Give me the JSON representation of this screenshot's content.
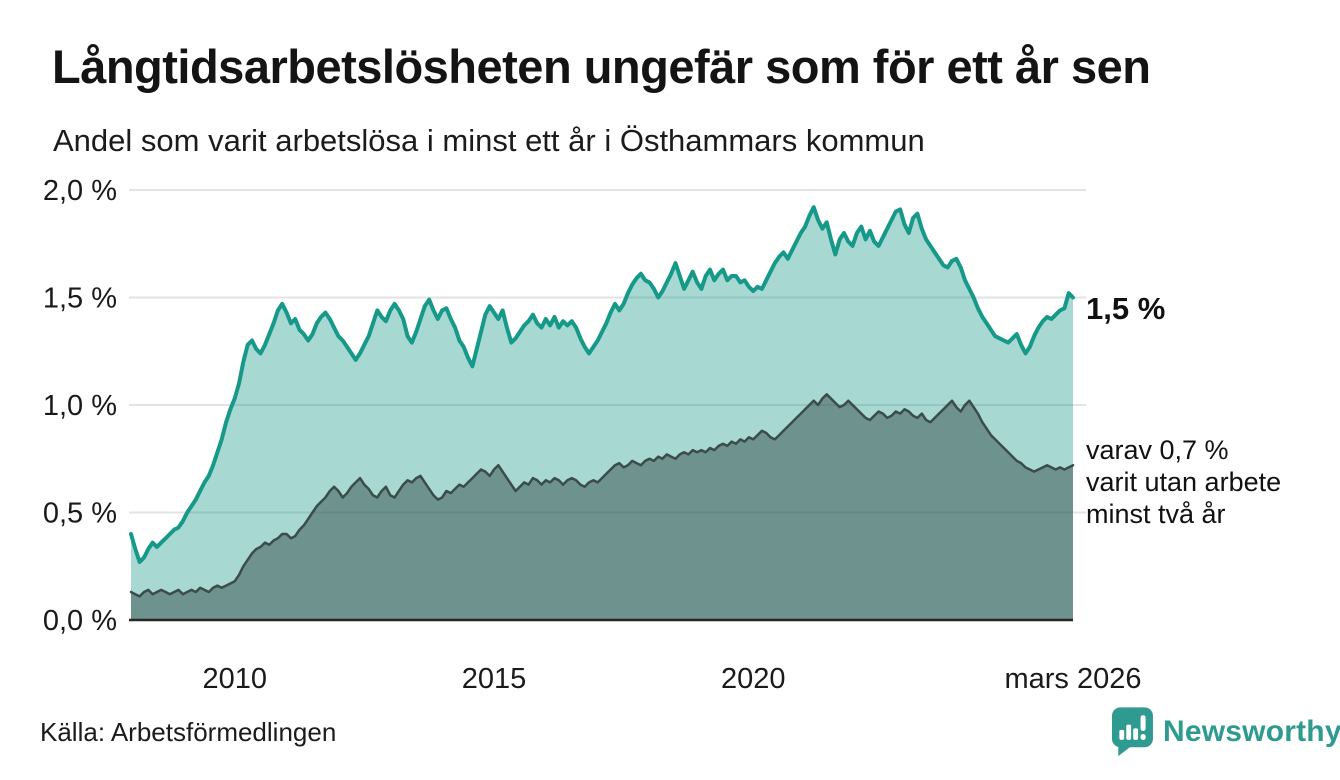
{
  "header": {
    "title": "Långtidsarbetslösheten ungefär som för ett år sen",
    "subtitle": "Andel som varit arbetslösa i minst ett år i Östhammars kommun"
  },
  "chart_data": {
    "type": "area",
    "title": "Långtidsarbetslösheten ungefär som för ett år sen",
    "subtitle": "Andel som varit arbetslösa i minst ett år i Östhammars kommun",
    "unit": "%",
    "frequency": "monthly",
    "x_start": "2008-01",
    "x_end": "2026-03",
    "ylim": [
      0,
      2.0
    ],
    "grid": true,
    "y_ticks": [
      {
        "label": "2,0 %",
        "value": 2.0
      },
      {
        "label": "1,5 %",
        "value": 1.5
      },
      {
        "label": "1,0 %",
        "value": 1.0
      },
      {
        "label": "0,5 %",
        "value": 0.5
      },
      {
        "label": "0,0 %",
        "value": 0.0
      }
    ],
    "x_ticks": [
      {
        "label": "2010",
        "year": 2010.0
      },
      {
        "label": "2015",
        "year": 2015.0
      },
      {
        "label": "2020",
        "year": 2020.0
      },
      {
        "label": "mars 2026",
        "year": 2026.1667
      }
    ],
    "series": [
      {
        "name": "Andel arbetslösa minst ett år",
        "line_color": "#17998a",
        "fill_color": "rgba(23,153,138,0.38)",
        "line_width": 4,
        "latest_value": "1,5 %",
        "values": [
          0.4,
          0.33,
          0.27,
          0.29,
          0.33,
          0.36,
          0.34,
          0.36,
          0.38,
          0.4,
          0.42,
          0.43,
          0.46,
          0.5,
          0.53,
          0.56,
          0.6,
          0.64,
          0.67,
          0.72,
          0.78,
          0.84,
          0.92,
          0.98,
          1.03,
          1.1,
          1.2,
          1.28,
          1.3,
          1.26,
          1.24,
          1.28,
          1.33,
          1.38,
          1.44,
          1.47,
          1.43,
          1.38,
          1.4,
          1.35,
          1.33,
          1.3,
          1.33,
          1.38,
          1.41,
          1.43,
          1.4,
          1.36,
          1.32,
          1.3,
          1.27,
          1.24,
          1.21,
          1.24,
          1.28,
          1.32,
          1.38,
          1.44,
          1.41,
          1.39,
          1.44,
          1.47,
          1.44,
          1.4,
          1.32,
          1.29,
          1.34,
          1.4,
          1.46,
          1.49,
          1.44,
          1.4,
          1.44,
          1.45,
          1.4,
          1.36,
          1.3,
          1.27,
          1.22,
          1.18,
          1.26,
          1.34,
          1.42,
          1.46,
          1.43,
          1.4,
          1.44,
          1.36,
          1.29,
          1.31,
          1.34,
          1.37,
          1.39,
          1.42,
          1.38,
          1.36,
          1.4,
          1.37,
          1.41,
          1.36,
          1.39,
          1.37,
          1.39,
          1.36,
          1.31,
          1.27,
          1.24,
          1.27,
          1.3,
          1.34,
          1.38,
          1.43,
          1.47,
          1.44,
          1.47,
          1.52,
          1.56,
          1.59,
          1.61,
          1.58,
          1.57,
          1.54,
          1.5,
          1.53,
          1.57,
          1.61,
          1.66,
          1.6,
          1.54,
          1.58,
          1.62,
          1.57,
          1.54,
          1.6,
          1.63,
          1.58,
          1.61,
          1.63,
          1.58,
          1.6,
          1.6,
          1.57,
          1.58,
          1.55,
          1.53,
          1.55,
          1.54,
          1.58,
          1.62,
          1.66,
          1.69,
          1.71,
          1.68,
          1.72,
          1.76,
          1.8,
          1.83,
          1.88,
          1.92,
          1.86,
          1.82,
          1.85,
          1.77,
          1.7,
          1.77,
          1.8,
          1.76,
          1.74,
          1.8,
          1.83,
          1.77,
          1.81,
          1.76,
          1.74,
          1.78,
          1.82,
          1.86,
          1.9,
          1.91,
          1.84,
          1.8,
          1.87,
          1.89,
          1.82,
          1.77,
          1.74,
          1.71,
          1.68,
          1.65,
          1.64,
          1.67,
          1.68,
          1.64,
          1.58,
          1.54,
          1.5,
          1.45,
          1.41,
          1.38,
          1.35,
          1.32,
          1.31,
          1.3,
          1.29,
          1.31,
          1.33,
          1.28,
          1.24,
          1.27,
          1.32,
          1.36,
          1.39,
          1.41,
          1.4,
          1.42,
          1.44,
          1.45,
          1.52,
          1.5
        ]
      },
      {
        "name": "Varav utan arbete minst två år",
        "line_color": "#3b4d4b",
        "fill_color": "rgba(43,61,59,0.45)",
        "line_width": 2.5,
        "latest_value": "0,7 %",
        "values": [
          0.13,
          0.12,
          0.11,
          0.13,
          0.14,
          0.12,
          0.13,
          0.14,
          0.13,
          0.12,
          0.13,
          0.14,
          0.12,
          0.13,
          0.14,
          0.13,
          0.15,
          0.14,
          0.13,
          0.15,
          0.16,
          0.15,
          0.16,
          0.17,
          0.18,
          0.21,
          0.25,
          0.28,
          0.31,
          0.33,
          0.34,
          0.36,
          0.35,
          0.37,
          0.38,
          0.4,
          0.4,
          0.38,
          0.39,
          0.42,
          0.44,
          0.47,
          0.5,
          0.53,
          0.55,
          0.57,
          0.6,
          0.62,
          0.6,
          0.57,
          0.59,
          0.62,
          0.64,
          0.66,
          0.63,
          0.61,
          0.58,
          0.57,
          0.6,
          0.62,
          0.58,
          0.57,
          0.6,
          0.63,
          0.65,
          0.64,
          0.66,
          0.67,
          0.64,
          0.61,
          0.58,
          0.56,
          0.57,
          0.6,
          0.59,
          0.61,
          0.63,
          0.62,
          0.64,
          0.66,
          0.68,
          0.7,
          0.69,
          0.67,
          0.7,
          0.72,
          0.69,
          0.66,
          0.63,
          0.6,
          0.62,
          0.64,
          0.63,
          0.66,
          0.65,
          0.63,
          0.65,
          0.64,
          0.66,
          0.65,
          0.63,
          0.65,
          0.66,
          0.65,
          0.63,
          0.62,
          0.64,
          0.65,
          0.64,
          0.66,
          0.68,
          0.7,
          0.72,
          0.73,
          0.71,
          0.72,
          0.74,
          0.73,
          0.72,
          0.74,
          0.75,
          0.74,
          0.76,
          0.75,
          0.77,
          0.76,
          0.75,
          0.77,
          0.78,
          0.77,
          0.79,
          0.78,
          0.79,
          0.78,
          0.8,
          0.79,
          0.81,
          0.82,
          0.81,
          0.83,
          0.82,
          0.84,
          0.83,
          0.85,
          0.84,
          0.86,
          0.88,
          0.87,
          0.85,
          0.84,
          0.86,
          0.88,
          0.9,
          0.92,
          0.94,
          0.96,
          0.98,
          1.0,
          1.02,
          1.0,
          1.03,
          1.05,
          1.03,
          1.01,
          0.99,
          1.0,
          1.02,
          1.0,
          0.98,
          0.96,
          0.94,
          0.93,
          0.95,
          0.97,
          0.96,
          0.94,
          0.95,
          0.97,
          0.96,
          0.98,
          0.97,
          0.95,
          0.94,
          0.96,
          0.93,
          0.92,
          0.94,
          0.96,
          0.98,
          1.0,
          1.02,
          0.99,
          0.97,
          1.0,
          1.02,
          0.99,
          0.96,
          0.92,
          0.89,
          0.86,
          0.84,
          0.82,
          0.8,
          0.78,
          0.76,
          0.74,
          0.73,
          0.71,
          0.7,
          0.69,
          0.7,
          0.71,
          0.72,
          0.71,
          0.7,
          0.71,
          0.7,
          0.71,
          0.72
        ]
      }
    ],
    "annotations": {
      "latest_value_label": "1,5 %",
      "secondary_label": "varav 0,7 %\nvarit utan arbete\nminst två år"
    },
    "legend_position": "right-edge-annotations",
    "colors": {
      "accent": "#17998a",
      "dark_series": "#3b4d4b",
      "gridline": "#e3e3e7",
      "axis": "#262626",
      "text": "#1a1a1a"
    }
  },
  "footer": {
    "source": "Källa: Arbetsförmedlingen",
    "brand": "Newsworthy",
    "brand_color": "#2f9a8f"
  }
}
